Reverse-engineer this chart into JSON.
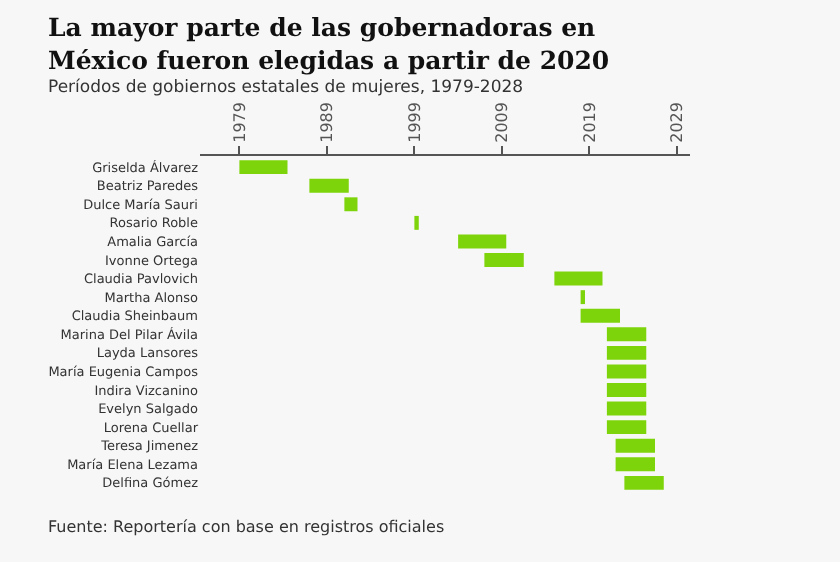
{
  "chart_data": {
    "type": "bar",
    "orientation": "horizontal",
    "title": "La mayor parte de las gobernadoras en México fueron elegidas a partir de 2020",
    "subtitle": "Períodos de gobiernos estatales de mujeres, 1979-2028",
    "categories": [
      "Griselda Álvarez",
      "Beatriz Paredes",
      "Dulce María Sauri",
      "Rosario Roble",
      "Amalia García",
      "Ivonne Ortega",
      "Claudia Pavlovich",
      "Martha Alonso",
      "Claudia Sheinbaum",
      "Marina Del Pilar Ávila",
      "Layda Lansores",
      "María Eugenia Campos",
      "Indira Vizcanino",
      "Evelyn Salgado",
      "Lorena Cuellar",
      "Teresa Jimenez",
      "María Elena Lezama",
      "Delfina Gómez"
    ],
    "base": [
      1979,
      1987,
      1991,
      1999,
      2004,
      2007,
      2015,
      2018,
      2018,
      2021,
      2021,
      2021,
      2021,
      2021,
      2021,
      2022,
      2022,
      2023
    ],
    "values": [
      5.5,
      4.5,
      1.5,
      0.5,
      5.5,
      4.5,
      5.5,
      0.5,
      4.5,
      4.5,
      4.5,
      4.5,
      4.5,
      4.5,
      4.5,
      4.5,
      4.5,
      4.5
    ],
    "color": "#7ed40a",
    "xlim": [
      1974.5,
      2030.5
    ],
    "xticks": [
      1979,
      1989,
      1999,
      2009,
      2019,
      2029
    ],
    "annotations": [
      "Fuente: Reportería con base en registros oficiales"
    ]
  }
}
